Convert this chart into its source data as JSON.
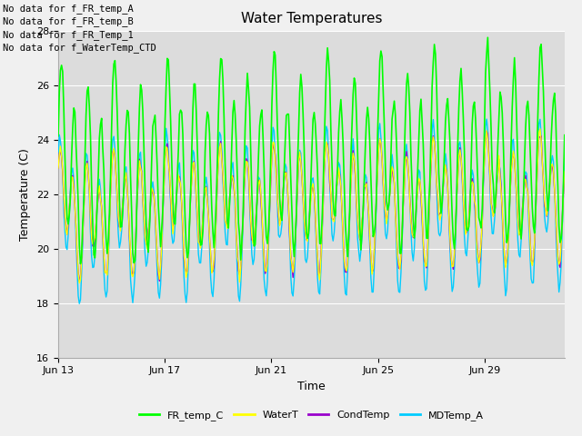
{
  "title": "Water Temperatures",
  "xlabel": "Time",
  "ylabel": "Temperature (C)",
  "ylim": [
    16,
    28
  ],
  "yticks": [
    16,
    18,
    20,
    22,
    24,
    26,
    28
  ],
  "xtick_labels": [
    "Jun 13",
    "Jun 17",
    "Jun 21",
    "Jun 25",
    "Jun 29"
  ],
  "xtick_positions": [
    0,
    4,
    8,
    12,
    16
  ],
  "no_data_texts": [
    "No data for f_FR_temp_A",
    "No data for f_FR_temp_B",
    "No data for f_FR_Temp_1",
    "No data for f_WaterTemp_CTD"
  ],
  "legend_labels": [
    "FR_temp_C",
    "WaterT",
    "CondTemp",
    "MDTemp_A"
  ],
  "line_colors": [
    "#00ff00",
    "#ffff00",
    "#9900cc",
    "#00ccff"
  ],
  "fig_facecolor": "#f0f0f0",
  "plot_bg_color": "#dcdcdc",
  "grid_color": "#ffffff",
  "title_fontsize": 11,
  "axis_fontsize": 9,
  "tick_fontsize": 8,
  "legend_fontsize": 8,
  "nodata_fontsize": 7.5
}
